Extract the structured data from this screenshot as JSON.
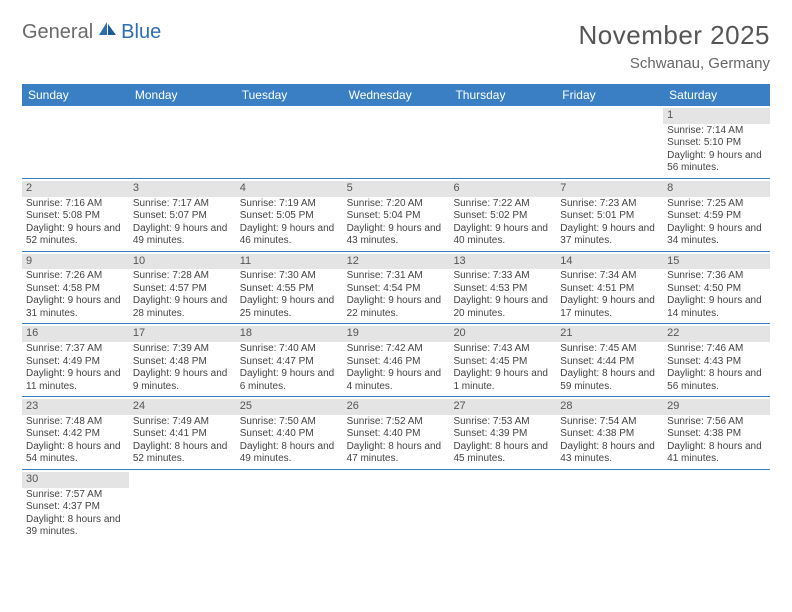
{
  "logo": {
    "general": "General",
    "blue": "Blue"
  },
  "title": "November 2025",
  "subtitle": "Schwanau, Germany",
  "colors": {
    "header_bg": "#3a7fc4",
    "header_fg": "#ffffff",
    "daynum_bg": "#e4e4e4",
    "rule": "#3a7fc4",
    "text": "#444444",
    "title": "#555555"
  },
  "day_names": [
    "Sunday",
    "Monday",
    "Tuesday",
    "Wednesday",
    "Thursday",
    "Friday",
    "Saturday"
  ],
  "weeks": [
    [
      {
        "n": "",
        "sr": "",
        "ss": "",
        "dl": ""
      },
      {
        "n": "",
        "sr": "",
        "ss": "",
        "dl": ""
      },
      {
        "n": "",
        "sr": "",
        "ss": "",
        "dl": ""
      },
      {
        "n": "",
        "sr": "",
        "ss": "",
        "dl": ""
      },
      {
        "n": "",
        "sr": "",
        "ss": "",
        "dl": ""
      },
      {
        "n": "",
        "sr": "",
        "ss": "",
        "dl": ""
      },
      {
        "n": "1",
        "sr": "Sunrise: 7:14 AM",
        "ss": "Sunset: 5:10 PM",
        "dl": "Daylight: 9 hours and 56 minutes."
      }
    ],
    [
      {
        "n": "2",
        "sr": "Sunrise: 7:16 AM",
        "ss": "Sunset: 5:08 PM",
        "dl": "Daylight: 9 hours and 52 minutes."
      },
      {
        "n": "3",
        "sr": "Sunrise: 7:17 AM",
        "ss": "Sunset: 5:07 PM",
        "dl": "Daylight: 9 hours and 49 minutes."
      },
      {
        "n": "4",
        "sr": "Sunrise: 7:19 AM",
        "ss": "Sunset: 5:05 PM",
        "dl": "Daylight: 9 hours and 46 minutes."
      },
      {
        "n": "5",
        "sr": "Sunrise: 7:20 AM",
        "ss": "Sunset: 5:04 PM",
        "dl": "Daylight: 9 hours and 43 minutes."
      },
      {
        "n": "6",
        "sr": "Sunrise: 7:22 AM",
        "ss": "Sunset: 5:02 PM",
        "dl": "Daylight: 9 hours and 40 minutes."
      },
      {
        "n": "7",
        "sr": "Sunrise: 7:23 AM",
        "ss": "Sunset: 5:01 PM",
        "dl": "Daylight: 9 hours and 37 minutes."
      },
      {
        "n": "8",
        "sr": "Sunrise: 7:25 AM",
        "ss": "Sunset: 4:59 PM",
        "dl": "Daylight: 9 hours and 34 minutes."
      }
    ],
    [
      {
        "n": "9",
        "sr": "Sunrise: 7:26 AM",
        "ss": "Sunset: 4:58 PM",
        "dl": "Daylight: 9 hours and 31 minutes."
      },
      {
        "n": "10",
        "sr": "Sunrise: 7:28 AM",
        "ss": "Sunset: 4:57 PM",
        "dl": "Daylight: 9 hours and 28 minutes."
      },
      {
        "n": "11",
        "sr": "Sunrise: 7:30 AM",
        "ss": "Sunset: 4:55 PM",
        "dl": "Daylight: 9 hours and 25 minutes."
      },
      {
        "n": "12",
        "sr": "Sunrise: 7:31 AM",
        "ss": "Sunset: 4:54 PM",
        "dl": "Daylight: 9 hours and 22 minutes."
      },
      {
        "n": "13",
        "sr": "Sunrise: 7:33 AM",
        "ss": "Sunset: 4:53 PM",
        "dl": "Daylight: 9 hours and 20 minutes."
      },
      {
        "n": "14",
        "sr": "Sunrise: 7:34 AM",
        "ss": "Sunset: 4:51 PM",
        "dl": "Daylight: 9 hours and 17 minutes."
      },
      {
        "n": "15",
        "sr": "Sunrise: 7:36 AM",
        "ss": "Sunset: 4:50 PM",
        "dl": "Daylight: 9 hours and 14 minutes."
      }
    ],
    [
      {
        "n": "16",
        "sr": "Sunrise: 7:37 AM",
        "ss": "Sunset: 4:49 PM",
        "dl": "Daylight: 9 hours and 11 minutes."
      },
      {
        "n": "17",
        "sr": "Sunrise: 7:39 AM",
        "ss": "Sunset: 4:48 PM",
        "dl": "Daylight: 9 hours and 9 minutes."
      },
      {
        "n": "18",
        "sr": "Sunrise: 7:40 AM",
        "ss": "Sunset: 4:47 PM",
        "dl": "Daylight: 9 hours and 6 minutes."
      },
      {
        "n": "19",
        "sr": "Sunrise: 7:42 AM",
        "ss": "Sunset: 4:46 PM",
        "dl": "Daylight: 9 hours and 4 minutes."
      },
      {
        "n": "20",
        "sr": "Sunrise: 7:43 AM",
        "ss": "Sunset: 4:45 PM",
        "dl": "Daylight: 9 hours and 1 minute."
      },
      {
        "n": "21",
        "sr": "Sunrise: 7:45 AM",
        "ss": "Sunset: 4:44 PM",
        "dl": "Daylight: 8 hours and 59 minutes."
      },
      {
        "n": "22",
        "sr": "Sunrise: 7:46 AM",
        "ss": "Sunset: 4:43 PM",
        "dl": "Daylight: 8 hours and 56 minutes."
      }
    ],
    [
      {
        "n": "23",
        "sr": "Sunrise: 7:48 AM",
        "ss": "Sunset: 4:42 PM",
        "dl": "Daylight: 8 hours and 54 minutes."
      },
      {
        "n": "24",
        "sr": "Sunrise: 7:49 AM",
        "ss": "Sunset: 4:41 PM",
        "dl": "Daylight: 8 hours and 52 minutes."
      },
      {
        "n": "25",
        "sr": "Sunrise: 7:50 AM",
        "ss": "Sunset: 4:40 PM",
        "dl": "Daylight: 8 hours and 49 minutes."
      },
      {
        "n": "26",
        "sr": "Sunrise: 7:52 AM",
        "ss": "Sunset: 4:40 PM",
        "dl": "Daylight: 8 hours and 47 minutes."
      },
      {
        "n": "27",
        "sr": "Sunrise: 7:53 AM",
        "ss": "Sunset: 4:39 PM",
        "dl": "Daylight: 8 hours and 45 minutes."
      },
      {
        "n": "28",
        "sr": "Sunrise: 7:54 AM",
        "ss": "Sunset: 4:38 PM",
        "dl": "Daylight: 8 hours and 43 minutes."
      },
      {
        "n": "29",
        "sr": "Sunrise: 7:56 AM",
        "ss": "Sunset: 4:38 PM",
        "dl": "Daylight: 8 hours and 41 minutes."
      }
    ],
    [
      {
        "n": "30",
        "sr": "Sunrise: 7:57 AM",
        "ss": "Sunset: 4:37 PM",
        "dl": "Daylight: 8 hours and 39 minutes."
      },
      {
        "n": "",
        "sr": "",
        "ss": "",
        "dl": ""
      },
      {
        "n": "",
        "sr": "",
        "ss": "",
        "dl": ""
      },
      {
        "n": "",
        "sr": "",
        "ss": "",
        "dl": ""
      },
      {
        "n": "",
        "sr": "",
        "ss": "",
        "dl": ""
      },
      {
        "n": "",
        "sr": "",
        "ss": "",
        "dl": ""
      },
      {
        "n": "",
        "sr": "",
        "ss": "",
        "dl": ""
      }
    ]
  ]
}
